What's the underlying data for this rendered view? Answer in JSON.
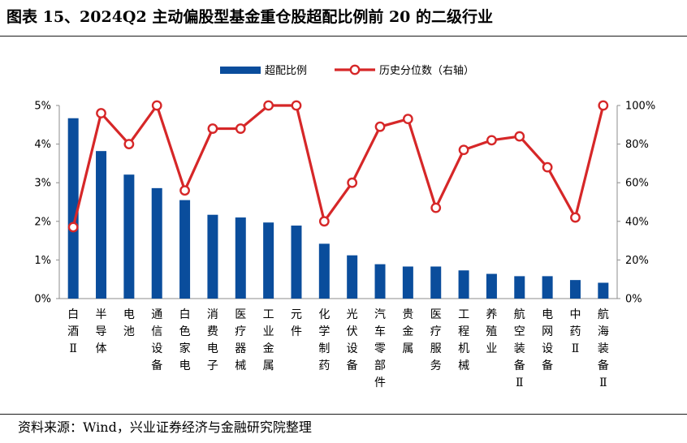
{
  "title": "图表 15、2024Q2 主动偏股型基金重仓股超配比例前 20 的二级行业",
  "source": "资料来源：Wind，兴业证券经济与金融研究院整理",
  "colors": {
    "bar": "#0a4d9c",
    "line": "#d62728",
    "marker_fill": "#ffffff"
  },
  "chart_data": {
    "type": "bar",
    "categories": [
      "白酒Ⅱ",
      "半导体",
      "电池",
      "通信设备",
      "白色家电",
      "消费电子",
      "医疗器械",
      "工业金属",
      "元件",
      "化学制药",
      "光伏设备",
      "汽车零部件",
      "贵金属",
      "医疗服务",
      "工程机械",
      "养殖业",
      "航空装备Ⅱ",
      "电网设备",
      "中药Ⅱ",
      "航海装备Ⅱ"
    ],
    "series": [
      {
        "name": "超配比例",
        "type": "bar",
        "axis": "left",
        "values": [
          4.67,
          3.82,
          3.21,
          2.86,
          2.55,
          2.17,
          2.1,
          1.97,
          1.89,
          1.42,
          1.12,
          0.89,
          0.83,
          0.83,
          0.73,
          0.64,
          0.58,
          0.58,
          0.48,
          0.41
        ]
      },
      {
        "name": "历史分位数（右轴）",
        "type": "line",
        "axis": "right",
        "values": [
          37,
          96,
          80,
          100,
          56,
          88,
          88,
          100,
          100,
          40,
          60,
          89,
          93,
          47,
          77,
          82,
          84,
          68,
          42,
          100
        ]
      }
    ],
    "left_axis": {
      "ticks": [
        "0%",
        "1%",
        "2%",
        "3%",
        "4%",
        "5%"
      ],
      "ylim": [
        0,
        5
      ]
    },
    "right_axis": {
      "ticks": [
        "0%",
        "20%",
        "40%",
        "60%",
        "80%",
        "100%"
      ],
      "ylim": [
        0,
        100
      ]
    },
    "legend": {
      "position": "top-center",
      "entries": [
        "超配比例",
        "历史分位数（右轴）"
      ]
    },
    "grid": false
  }
}
